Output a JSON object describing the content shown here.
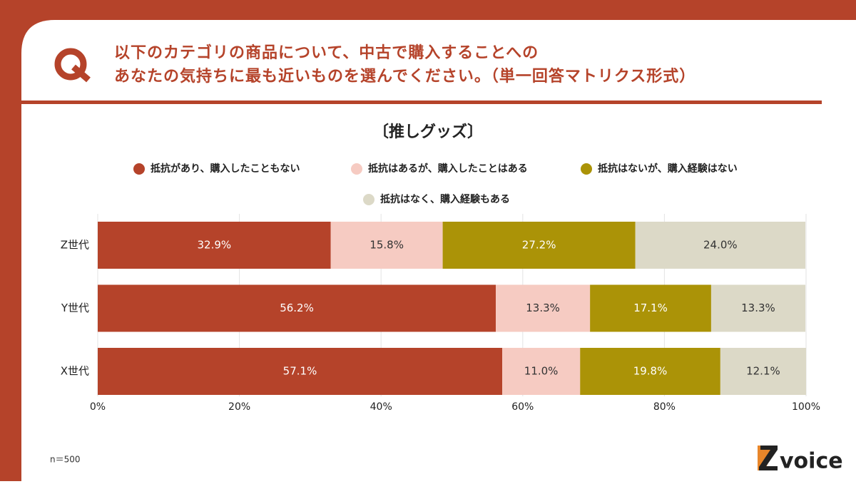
{
  "question": {
    "mark": "Q",
    "lines": [
      "以下のカテゴリの商品について、中古で購入することへの",
      "あなたの気持ちに最も近いものを選んでください。（単一回答マトリクス形式）"
    ]
  },
  "chart_data": {
    "type": "stacked-horizontal-bar",
    "title": "〔推しグッズ〕",
    "categories": [
      "Z世代",
      "Y世代",
      "X世代"
    ],
    "series": [
      {
        "name": "抵抗があり、購入したこともない",
        "color": "#b5432a",
        "values": [
          32.9,
          56.2,
          57.1
        ],
        "value_labels": [
          "32.9%",
          "56.2%",
          "57.1%"
        ]
      },
      {
        "name": "抵抗はあるが、購入したことはある",
        "color": "#f6cbc2",
        "values": [
          15.8,
          13.3,
          11.0
        ],
        "value_labels": [
          "15.8%",
          "13.3%",
          "11.0%"
        ]
      },
      {
        "name": "抵抗はないが、購入経験はない",
        "color": "#ab9307",
        "values": [
          27.2,
          17.1,
          19.8
        ],
        "value_labels": [
          "27.2%",
          "17.1%",
          "19.8%"
        ]
      },
      {
        "name": "抵抗はなく、購入経験もある",
        "color": "#dcd9c7",
        "values": [
          24.0,
          13.3,
          12.1
        ],
        "value_labels": [
          "24.0%",
          "13.3%",
          "12.1%"
        ]
      }
    ],
    "xlim": [
      0,
      100
    ],
    "xticks": [
      {
        "value": 0,
        "label": "0%"
      },
      {
        "value": 20,
        "label": "20%"
      },
      {
        "value": 40,
        "label": "40%"
      },
      {
        "value": 60,
        "label": "60%"
      },
      {
        "value": 80,
        "label": "80%"
      },
      {
        "value": 100,
        "label": "100%"
      }
    ],
    "grid": true
  },
  "footnote": "n＝500",
  "brand": "voice"
}
